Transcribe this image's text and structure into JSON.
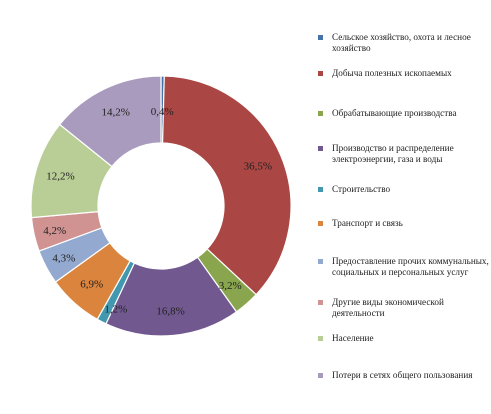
{
  "chart_data": {
    "type": "pie",
    "donut": true,
    "legend_position": "right",
    "categories": [
      "Сельское хозяйство, охота и лесное хозяйство",
      "Добыча полезных ископаемых",
      "Обрабатывающие производства",
      "Производство и распределение электроэнергии, газа и воды",
      "Строительство",
      "Транспорт и связь",
      "Предоставление прочих коммунальных, социальных и персональных услуг",
      "Другие виды экономической деятельности",
      "Население",
      "Потери в сетях общего пользования"
    ],
    "values": [
      0.4,
      36.5,
      3.2,
      16.8,
      1.2,
      6.9,
      4.3,
      4.2,
      12.2,
      14.2
    ],
    "data_labels": [
      "0,4%",
      "36,5%",
      "3,2%",
      "16,8%",
      "1,2%",
      "6,9%",
      "4,3%",
      "4,2%",
      "12,2%",
      "14,2%"
    ],
    "colors": [
      "#4572a7",
      "#aa4643",
      "#89a54e",
      "#71588f",
      "#4198af",
      "#db843d",
      "#93a9cf",
      "#d19392",
      "#b9cd96",
      "#a99bbd"
    ]
  }
}
